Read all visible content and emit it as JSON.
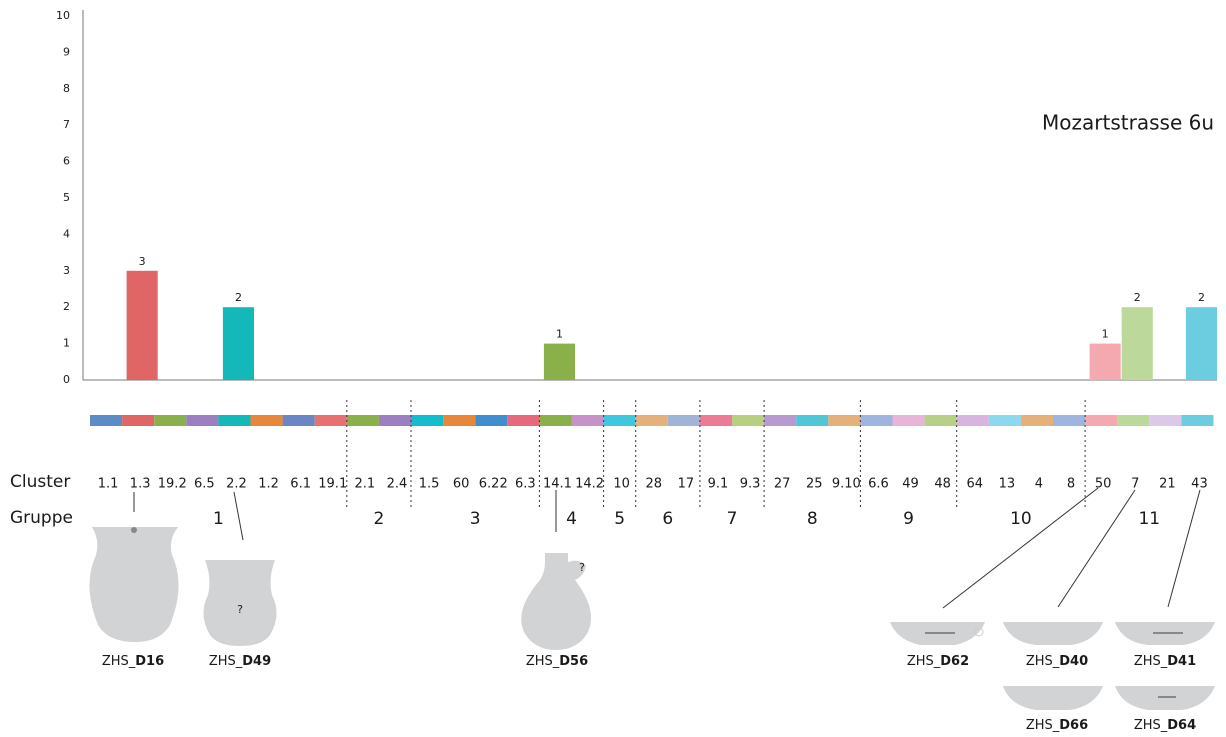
{
  "chart_data": {
    "type": "bar",
    "title": "Mozartstrasse 6u",
    "row_labels": {
      "cluster": "Cluster",
      "group": "Gruppe"
    },
    "categories": [
      "1.1",
      "1.3",
      "19.2",
      "6.5",
      "2.2",
      "1.2",
      "6.1",
      "19.1",
      "2.1",
      "2.4",
      "1.5",
      "60",
      "6.22",
      "6.3",
      "14.1",
      "14.2",
      "10",
      "28",
      "17",
      "9.1",
      "9.3",
      "27",
      "25",
      "9.10",
      "6.6",
      "49",
      "48",
      "64",
      "13",
      "4",
      "8",
      "50",
      "7",
      "21",
      "43"
    ],
    "values": [
      0,
      3,
      0,
      0,
      2,
      0,
      0,
      0,
      0,
      0,
      0,
      0,
      0,
      0,
      1,
      0,
      0,
      0,
      0,
      0,
      0,
      0,
      0,
      0,
      0,
      0,
      0,
      0,
      0,
      0,
      0,
      1,
      2,
      0,
      2
    ],
    "colors": [
      "#5b8cc8",
      "#e06666",
      "#8ab04a",
      "#9b7fc0",
      "#14b8b8",
      "#e8873a",
      "#6a86c4",
      "#e87070",
      "#8ab04a",
      "#9b7fc0",
      "#14bcd0",
      "#e8873a",
      "#3f8fd0",
      "#e8677a",
      "#8ab04a",
      "#c792c9",
      "#3ec8e0",
      "#e6b07a",
      "#a0b4d8",
      "#ee7b95",
      "#b8cf80",
      "#b89ad0",
      "#50c6d8",
      "#e6b07a",
      "#a0b4e0",
      "#e8b4d8",
      "#b8cf88",
      "#d8b4e0",
      "#8cd8ee",
      "#e6b07a",
      "#a0b4e0",
      "#f4a8b0",
      "#bcd89a",
      "#dcc8e8",
      "#6ccce0"
    ],
    "groups": [
      "1",
      "2",
      "3",
      "4",
      "5",
      "6",
      "7",
      "8",
      "9",
      "10",
      "11"
    ],
    "ylim": [
      0,
      10
    ],
    "yticks": [
      0,
      1,
      2,
      3,
      4,
      5,
      6,
      7,
      8,
      9,
      10
    ],
    "grid": false
  },
  "vessels": [
    {
      "prefix": "ZHS_",
      "id": "D16"
    },
    {
      "prefix": "ZHS_",
      "id": "D49",
      "note": "?"
    },
    {
      "prefix": "ZHS_",
      "id": "D56",
      "note": "?"
    },
    {
      "prefix": "ZHS_",
      "id": "D62"
    },
    {
      "prefix": "ZHS_",
      "id": "D40"
    },
    {
      "prefix": "ZHS_",
      "id": "D41"
    },
    {
      "prefix": "ZHS_",
      "id": "D66"
    },
    {
      "prefix": "ZHS_",
      "id": "D64"
    }
  ]
}
